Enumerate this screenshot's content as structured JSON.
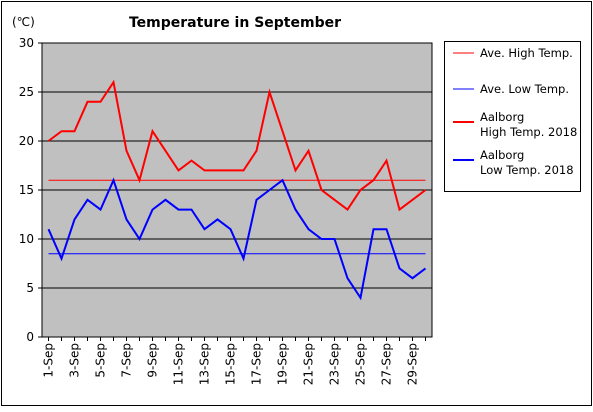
{
  "chart_data": {
    "type": "line",
    "title": "Temperature in September",
    "unit": "(℃)",
    "xlabel": "",
    "ylabel": "",
    "ylim": [
      0,
      30
    ],
    "yticks": [
      "0",
      "5",
      "10",
      "15",
      "20",
      "25",
      "30"
    ],
    "grid": true,
    "legend_position": "right",
    "x": [
      "1-Sep",
      "2-Sep",
      "3-Sep",
      "4-Sep",
      "5-Sep",
      "6-Sep",
      "7-Sep",
      "8-Sep",
      "9-Sep",
      "10-Sep",
      "11-Sep",
      "12-Sep",
      "13-Sep",
      "14-Sep",
      "15-Sep",
      "16-Sep",
      "17-Sep",
      "18-Sep",
      "19-Sep",
      "20-Sep",
      "21-Sep",
      "22-Sep",
      "23-Sep",
      "24-Sep",
      "25-Sep",
      "26-Sep",
      "27-Sep",
      "28-Sep",
      "29-Sep",
      "30-Sep"
    ],
    "xticks_shown": [
      "1-Sep",
      "3-Sep",
      "5-Sep",
      "7-Sep",
      "9-Sep",
      "11-Sep",
      "13-Sep",
      "15-Sep",
      "17-Sep",
      "19-Sep",
      "21-Sep",
      "23-Sep",
      "25-Sep",
      "27-Sep",
      "29-Sep"
    ],
    "series": [
      {
        "name": "Ave. High Temp.",
        "color": "#ff0000",
        "style": "thin",
        "values": [
          16,
          16,
          16,
          16,
          16,
          16,
          16,
          16,
          16,
          16,
          16,
          16,
          16,
          16,
          16,
          16,
          16,
          16,
          16,
          16,
          16,
          16,
          16,
          16,
          16,
          16,
          16,
          16,
          16,
          16
        ]
      },
      {
        "name": "Ave. Low Temp.",
        "color": "#0000ff",
        "style": "thin",
        "values": [
          8.5,
          8.5,
          8.5,
          8.5,
          8.5,
          8.5,
          8.5,
          8.5,
          8.5,
          8.5,
          8.5,
          8.5,
          8.5,
          8.5,
          8.5,
          8.5,
          8.5,
          8.5,
          8.5,
          8.5,
          8.5,
          8.5,
          8.5,
          8.5,
          8.5,
          8.5,
          8.5,
          8.5,
          8.5,
          8.5
        ]
      },
      {
        "name": "Aalborg\nHigh Temp. 2018",
        "color": "#ff0000",
        "style": "thick",
        "values": [
          20,
          21,
          21,
          24,
          24,
          26,
          19,
          16,
          21,
          19,
          17,
          18,
          17,
          17,
          17,
          17,
          19,
          25,
          21,
          17,
          19,
          15,
          14,
          13,
          15,
          16,
          18,
          13,
          14,
          15
        ]
      },
      {
        "name": "Aalborg\nLow Temp. 2018",
        "color": "#0000ff",
        "style": "thick",
        "values": [
          11,
          8,
          12,
          14,
          13,
          16,
          12,
          10,
          13,
          14,
          13,
          13,
          11,
          12,
          11,
          8,
          14,
          15,
          16,
          13,
          11,
          10,
          10,
          6,
          4,
          11,
          11,
          7,
          6,
          7
        ]
      }
    ],
    "colors": {
      "plot_background": "#c0c0c0",
      "grid": "#000000"
    }
  }
}
